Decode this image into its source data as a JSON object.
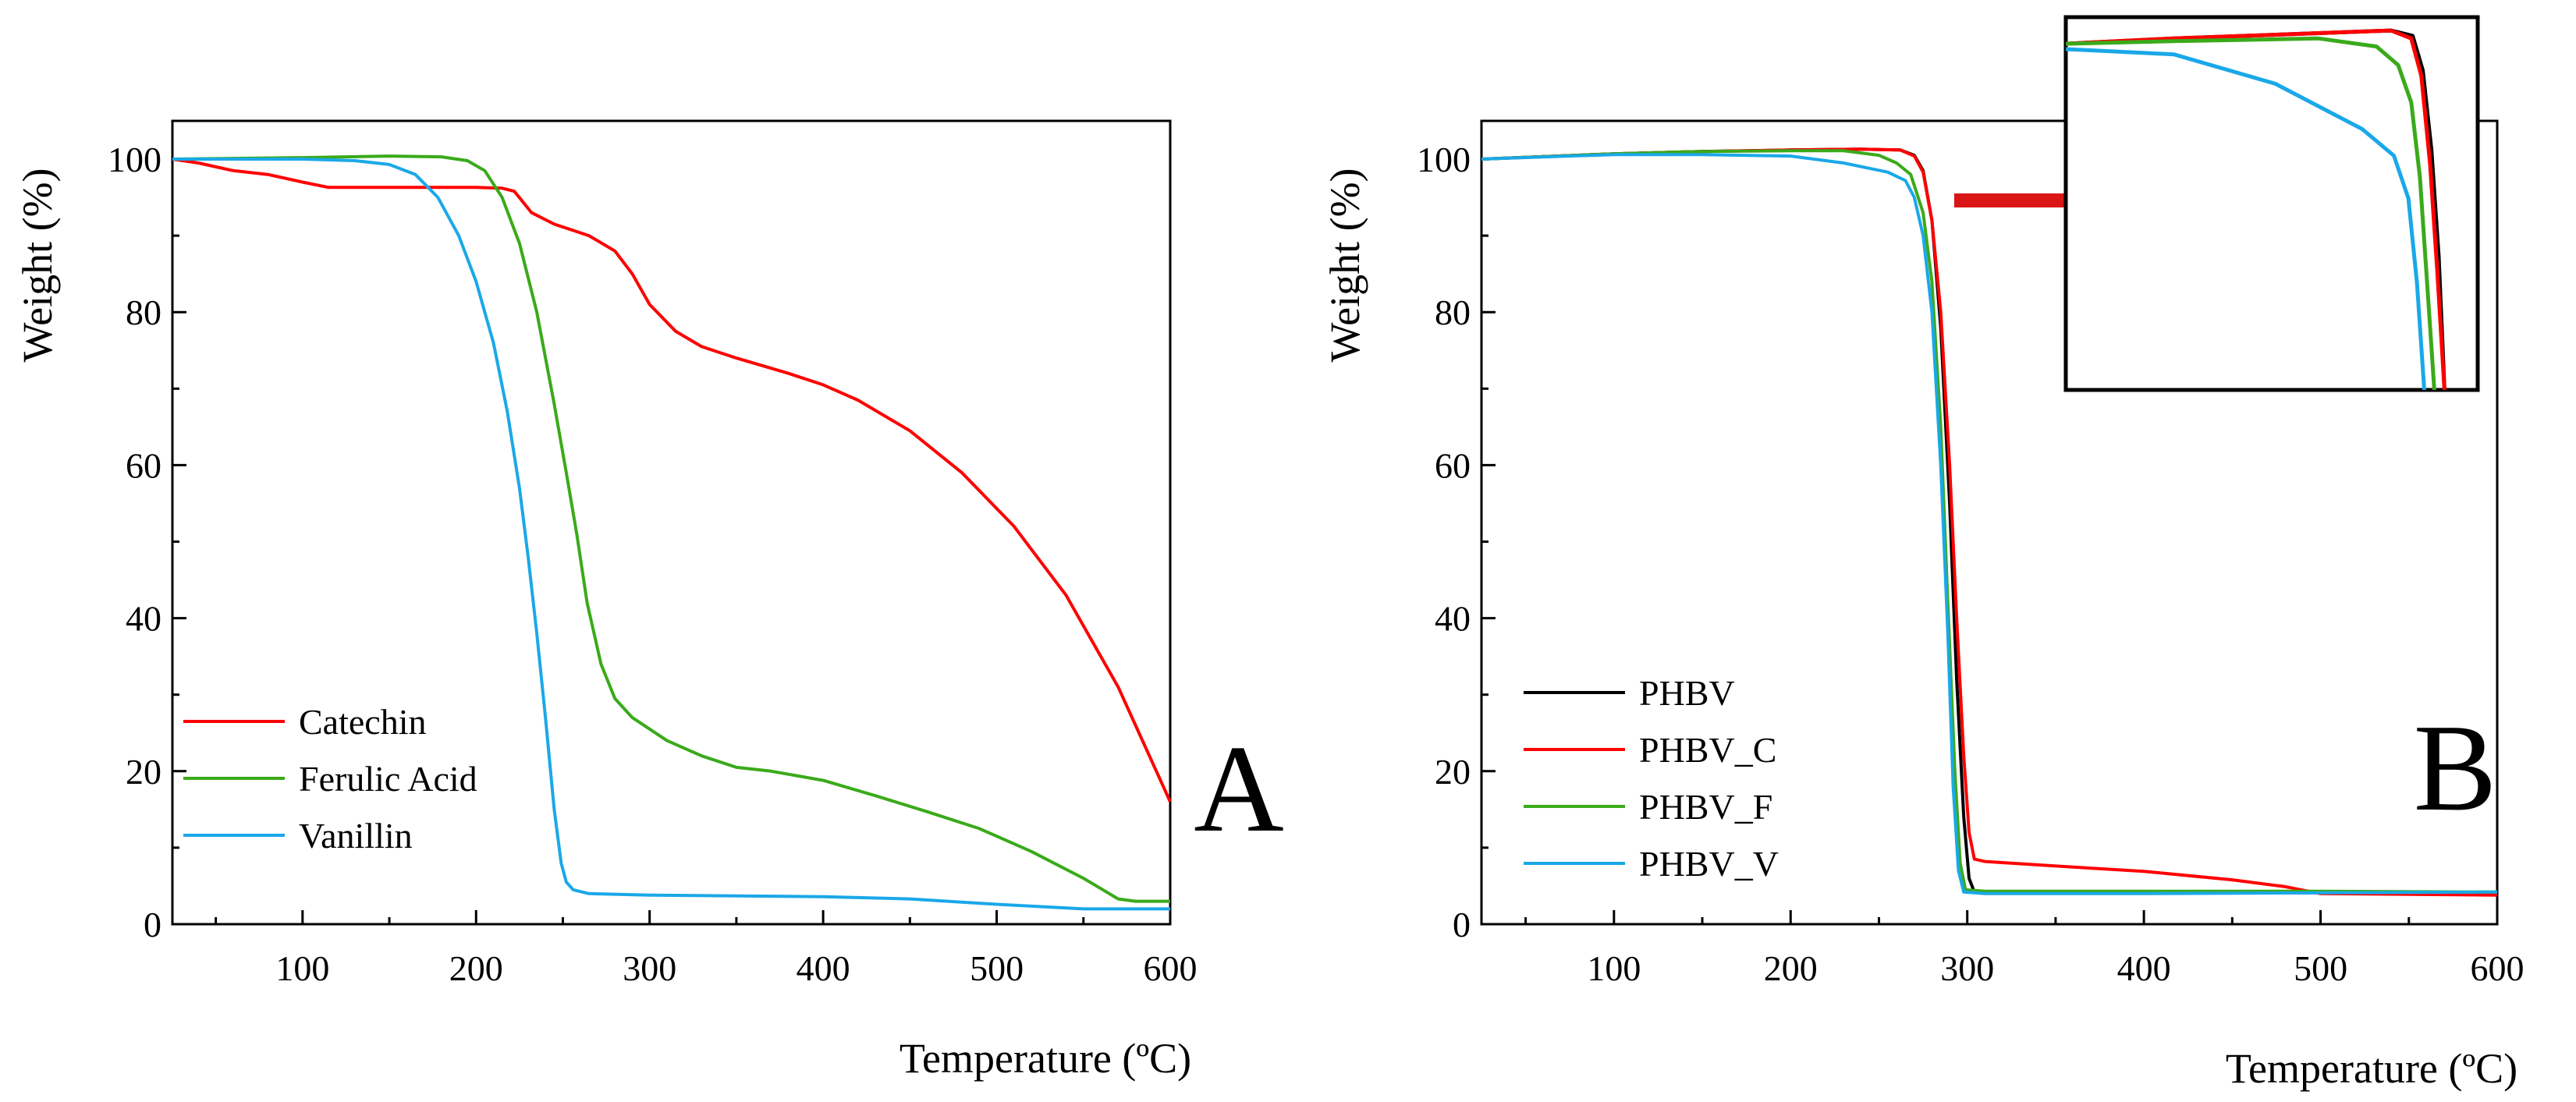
{
  "chart_data": [
    {
      "type": "line",
      "panel_label": "A",
      "xlabel": "Temperature (ºC)",
      "ylabel": "Weight (%)",
      "xlim": [
        25,
        600
      ],
      "ylim": [
        0,
        105
      ],
      "xticks": [
        100,
        200,
        300,
        400,
        500,
        600
      ],
      "yticks": [
        0,
        20,
        40,
        60,
        80,
        100
      ],
      "grid": false,
      "legend_position": "lower-left",
      "series": [
        {
          "name": "Catechin",
          "color": "#ff0000",
          "points": [
            [
              25,
              100
            ],
            [
              40,
              99.5
            ],
            [
              60,
              98.5
            ],
            [
              80,
              98
            ],
            [
              100,
              97
            ],
            [
              115,
              96.3
            ],
            [
              150,
              96.3
            ],
            [
              200,
              96.3
            ],
            [
              215,
              96.2
            ],
            [
              222,
              95.8
            ],
            [
              232,
              93
            ],
            [
              245,
              91.5
            ],
            [
              265,
              90
            ],
            [
              280,
              88
            ],
            [
              290,
              85
            ],
            [
              300,
              81
            ],
            [
              315,
              77.5
            ],
            [
              330,
              75.5
            ],
            [
              350,
              74
            ],
            [
              380,
              72
            ],
            [
              400,
              70.5
            ],
            [
              420,
              68.5
            ],
            [
              450,
              64.5
            ],
            [
              480,
              59
            ],
            [
              510,
              52
            ],
            [
              540,
              43
            ],
            [
              570,
              31
            ],
            [
              600,
              16
            ]
          ]
        },
        {
          "name": "Ferulic Acid",
          "color": "#3aaa1a",
          "points": [
            [
              25,
              100
            ],
            [
              100,
              100.2
            ],
            [
              150,
              100.4
            ],
            [
              180,
              100.3
            ],
            [
              195,
              99.8
            ],
            [
              205,
              98.5
            ],
            [
              215,
              95
            ],
            [
              225,
              89
            ],
            [
              235,
              80
            ],
            [
              245,
              68
            ],
            [
              252,
              59
            ],
            [
              258,
              51
            ],
            [
              264,
              42
            ],
            [
              272,
              34
            ],
            [
              280,
              29.5
            ],
            [
              290,
              27
            ],
            [
              310,
              24
            ],
            [
              330,
              22
            ],
            [
              350,
              20.5
            ],
            [
              370,
              20
            ],
            [
              400,
              18.8
            ],
            [
              430,
              16.8
            ],
            [
              460,
              14.7
            ],
            [
              490,
              12.5
            ],
            [
              520,
              9.5
            ],
            [
              550,
              6
            ],
            [
              570,
              3.3
            ],
            [
              580,
              3
            ],
            [
              600,
              3
            ]
          ]
        },
        {
          "name": "Vanillin",
          "color": "#1aa8e8",
          "points": [
            [
              25,
              100
            ],
            [
              100,
              100
            ],
            [
              130,
              99.8
            ],
            [
              150,
              99.3
            ],
            [
              165,
              98
            ],
            [
              178,
              95
            ],
            [
              190,
              90
            ],
            [
              200,
              84
            ],
            [
              210,
              76
            ],
            [
              218,
              67
            ],
            [
              225,
              57
            ],
            [
              230,
              48
            ],
            [
              235,
              38
            ],
            [
              240,
              27
            ],
            [
              245,
              15
            ],
            [
              249,
              8
            ],
            [
              252,
              5.5
            ],
            [
              256,
              4.5
            ],
            [
              265,
              4
            ],
            [
              300,
              3.8
            ],
            [
              400,
              3.6
            ],
            [
              450,
              3.3
            ],
            [
              500,
              2.6
            ],
            [
              550,
              2
            ],
            [
              600,
              2
            ]
          ]
        }
      ]
    },
    {
      "type": "line",
      "panel_label": "B",
      "xlabel": "Temperature (ºC)",
      "ylabel": "Weight (%)",
      "xlim": [
        25,
        600
      ],
      "ylim": [
        0,
        105
      ],
      "xticks": [
        100,
        200,
        300,
        400,
        500,
        600
      ],
      "yticks": [
        0,
        20,
        40,
        60,
        80,
        100
      ],
      "grid": false,
      "legend_position": "lower-left",
      "inset": "zoomed view of onset of weight loss, indicated by red arrow",
      "series": [
        {
          "name": "PHBV",
          "color": "#000000",
          "points": [
            [
              25,
              100
            ],
            [
              100,
              100.7
            ],
            [
              150,
              101
            ],
            [
              200,
              101.2
            ],
            [
              240,
              101.3
            ],
            [
              262,
              101.2
            ],
            [
              270,
              100.5
            ],
            [
              275,
              98.5
            ],
            [
              280,
              92
            ],
            [
              285,
              78
            ],
            [
              290,
              55
            ],
            [
              294,
              32
            ],
            [
              298,
              14
            ],
            [
              301,
              6
            ],
            [
              304,
              4.2
            ],
            [
              320,
              4.2
            ],
            [
              400,
              4.2
            ],
            [
              500,
              4.1
            ],
            [
              600,
              4.1
            ]
          ]
        },
        {
          "name": "PHBV_C",
          "color": "#ff0000",
          "points": [
            [
              25,
              100
            ],
            [
              100,
              100.7
            ],
            [
              150,
              101
            ],
            [
              200,
              101.2
            ],
            [
              240,
              101.3
            ],
            [
              262,
              101.2
            ],
            [
              270,
              100.4
            ],
            [
              275,
              98.3
            ],
            [
              280,
              92
            ],
            [
              285,
              80
            ],
            [
              290,
              60
            ],
            [
              294,
              40
            ],
            [
              298,
              22
            ],
            [
              301,
              12
            ],
            [
              304,
              8.5
            ],
            [
              310,
              8.2
            ],
            [
              350,
              7.6
            ],
            [
              400,
              6.9
            ],
            [
              450,
              5.8
            ],
            [
              480,
              4.9
            ],
            [
              500,
              4
            ],
            [
              600,
              3.8
            ]
          ]
        },
        {
          "name": "PHBV_F",
          "color": "#3aaa1a",
          "points": [
            [
              25,
              100
            ],
            [
              100,
              100.7
            ],
            [
              150,
              101
            ],
            [
              200,
              101.1
            ],
            [
              230,
              101.1
            ],
            [
              250,
              100.5
            ],
            [
              260,
              99.5
            ],
            [
              268,
              98
            ],
            [
              275,
              93
            ],
            [
              280,
              84
            ],
            [
              285,
              65
            ],
            [
              289,
              42
            ],
            [
              293,
              20
            ],
            [
              296,
              8
            ],
            [
              299,
              4.5
            ],
            [
              310,
              4.3
            ],
            [
              400,
              4.3
            ],
            [
              500,
              4.3
            ],
            [
              600,
              4.2
            ]
          ]
        },
        {
          "name": "PHBV_V",
          "color": "#1aa8e8",
          "points": [
            [
              25,
              100
            ],
            [
              100,
              100.6
            ],
            [
              150,
              100.6
            ],
            [
              200,
              100.4
            ],
            [
              230,
              99.5
            ],
            [
              255,
              98.3
            ],
            [
              265,
              97.2
            ],
            [
              270,
              95
            ],
            [
              275,
              90
            ],
            [
              280,
              80
            ],
            [
              285,
              60
            ],
            [
              289,
              38
            ],
            [
              292,
              18
            ],
            [
              295,
              7
            ],
            [
              298,
              4.2
            ],
            [
              310,
              4
            ],
            [
              400,
              4
            ],
            [
              500,
              4.1
            ],
            [
              600,
              4.2
            ]
          ]
        }
      ]
    }
  ]
}
